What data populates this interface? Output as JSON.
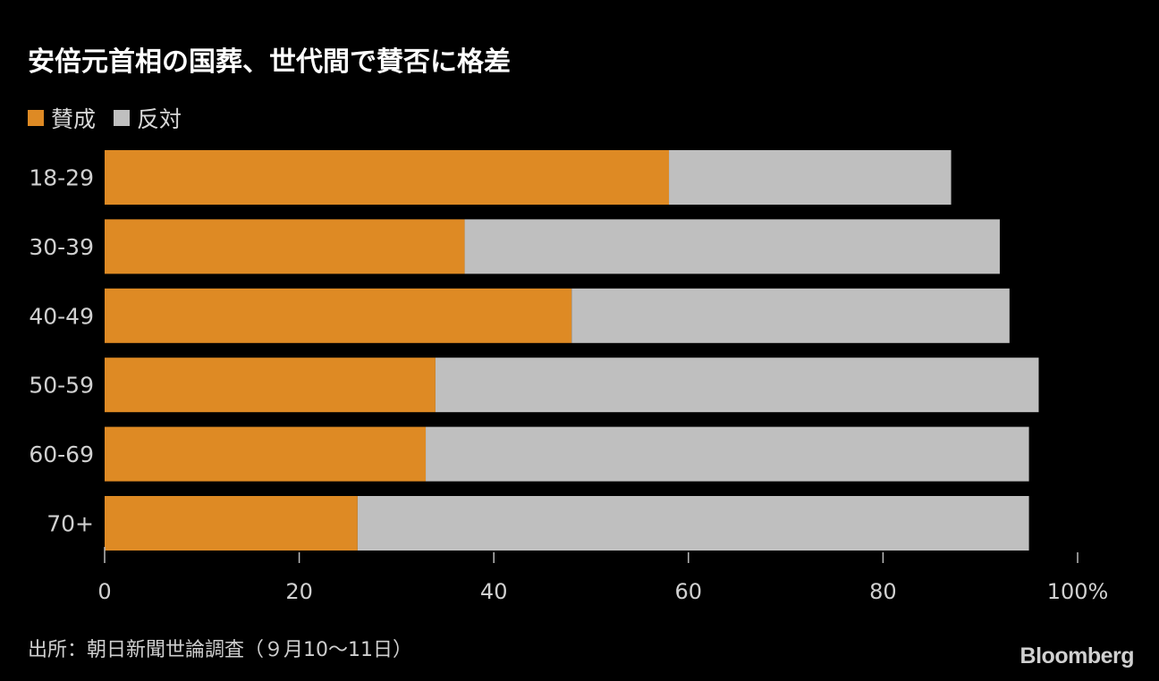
{
  "title": "安倍元首相の国葬、世代間で賛否に格差",
  "legend": [
    {
      "label": "賛成",
      "color": "#de8a24"
    },
    {
      "label": "反対",
      "color": "#bfbfbf"
    }
  ],
  "source": "出所：朝日新聞世論調査（９月10～11日）",
  "brand": "Bloomberg",
  "chart_data": {
    "type": "bar",
    "orientation": "horizontal",
    "stacked": true,
    "categories": [
      "18-29",
      "30-39",
      "40-49",
      "50-59",
      "60-69",
      "70+"
    ],
    "series": [
      {
        "name": "賛成",
        "color": "#de8a24",
        "values": [
          58,
          37,
          48,
          34,
          33,
          26
        ]
      },
      {
        "name": "反対",
        "color": "#bfbfbf",
        "values": [
          29,
          55,
          45,
          62,
          62,
          69
        ]
      }
    ],
    "xlim": [
      0,
      100
    ],
    "xticks": [
      "0",
      "20",
      "40",
      "60",
      "80",
      "100%"
    ],
    "grid": false,
    "legend_position": "top-left"
  }
}
